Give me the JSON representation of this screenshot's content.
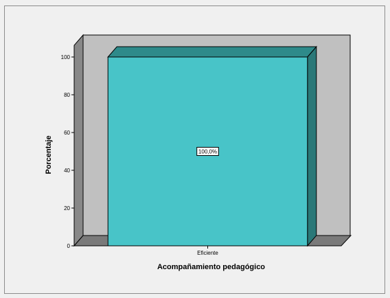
{
  "chart_data": {
    "type": "bar",
    "categories": [
      "Eficiente"
    ],
    "values": [
      100
    ],
    "data_labels": [
      "100,0%"
    ],
    "xlabel": "Acompañamiento pedagógico",
    "ylabel": "Porcentaje",
    "ylim": [
      0,
      100
    ],
    "yticks": [
      0,
      20,
      40,
      60,
      80,
      100
    ],
    "grid": false,
    "style": "3d",
    "colors": {
      "bar_front": "#48c4c8",
      "bar_top": "#2e8a8a",
      "bar_side": "#2a7878",
      "back_wall": "#c0c0c0",
      "side_wall": "#888888",
      "floor": "#7a7a7a",
      "background": "#f0f0f0"
    }
  }
}
